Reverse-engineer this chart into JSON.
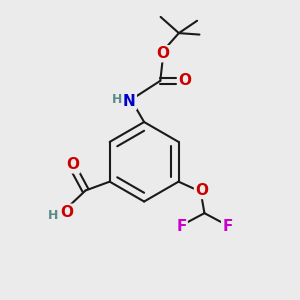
{
  "background_color": "#ebebeb",
  "bond_color": "#1a1a1a",
  "bond_width": 1.5,
  "atom_colors": {
    "C": "#1a1a1a",
    "H": "#5a8a8a",
    "N": "#0000cc",
    "O": "#cc0000",
    "F": "#cc00cc"
  },
  "font_size_atom": 11,
  "font_size_small": 9,
  "figsize": [
    3.0,
    3.0
  ],
  "dpi": 100
}
